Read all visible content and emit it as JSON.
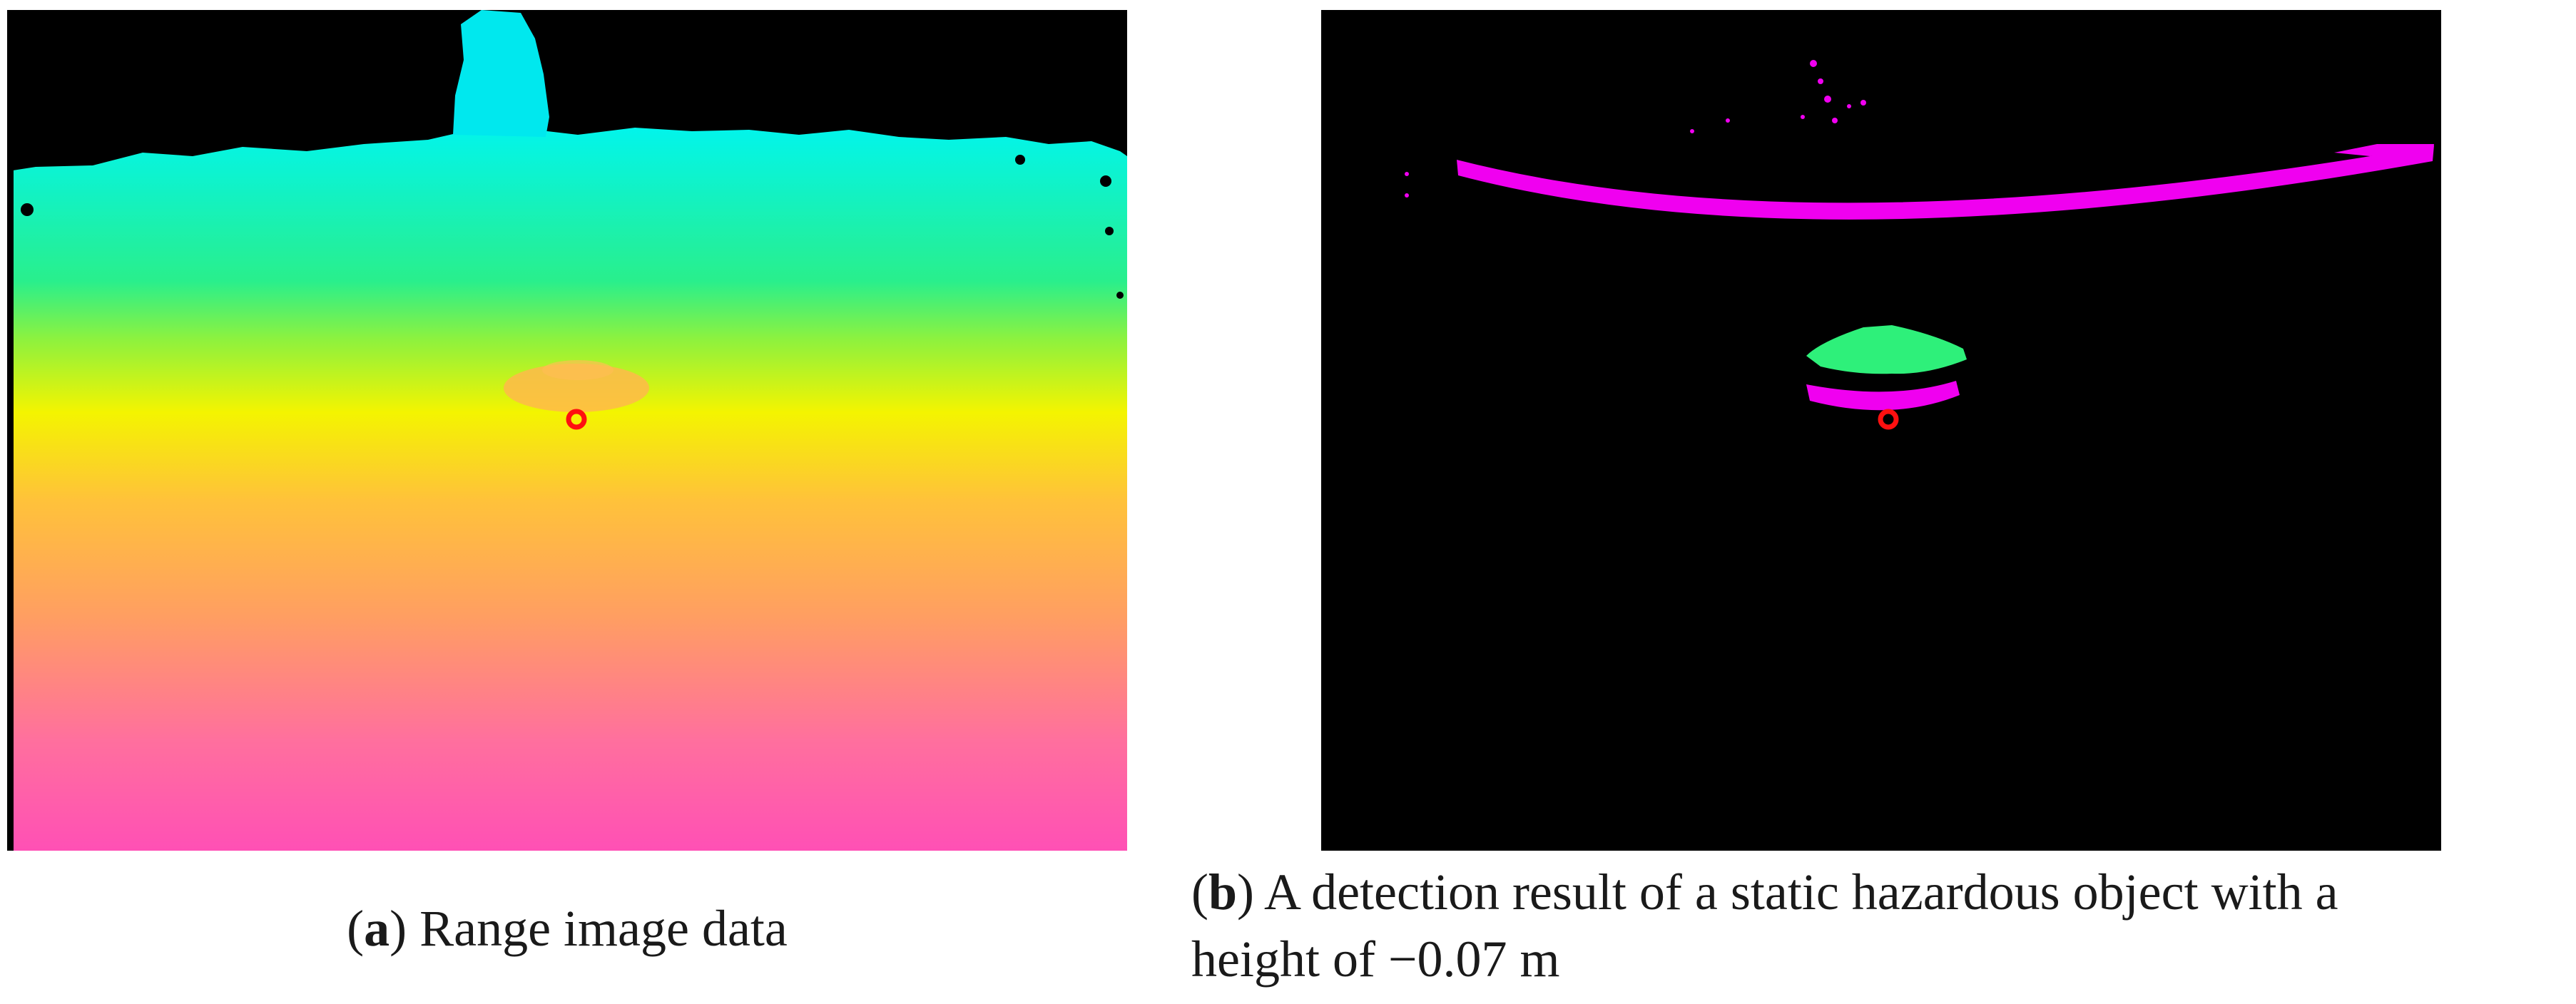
{
  "panels": [
    {
      "letter": "a",
      "caption": "Range image data",
      "colors": {
        "far_cyan": "#00f5f0",
        "green": "#29ef8c",
        "yellow": "#f4f400",
        "orange": "#ffb84a",
        "near_magenta": "#ff50b5",
        "marker": "#ff1010"
      }
    },
    {
      "letter": "b",
      "caption_line1": "A detection result of a static hazardous object with a",
      "caption_line2": "height of −0.07 m",
      "colors": {
        "background": "#000000",
        "ground_boundary": "#f000f0",
        "object": "#2ef07a",
        "marker": "#ff1010"
      }
    }
  ]
}
